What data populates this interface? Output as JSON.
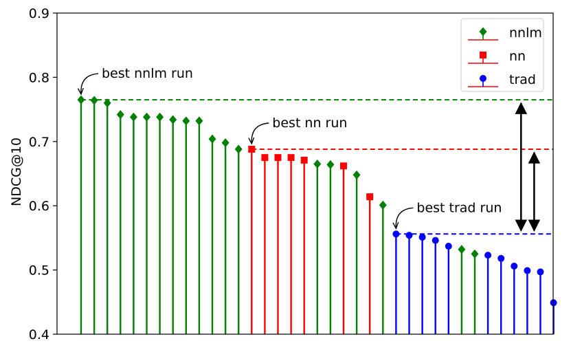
{
  "chart_data": {
    "type": "stem",
    "ylabel": "NDCG@10",
    "ylim": [
      0.4,
      0.9
    ],
    "yticks": [
      0.4,
      0.5,
      0.6,
      0.7,
      0.8,
      0.9
    ],
    "ytick_labels": [
      "0.4",
      "0.5",
      "0.6",
      "0.7",
      "0.8",
      "0.9"
    ],
    "grid": false,
    "legend_position": "upper-right",
    "colors": {
      "nnlm": "#008000",
      "nn": "#ff0000",
      "trad": "#0000ff",
      "baseline_line": "#ff0000",
      "arrows": "#000000"
    },
    "series": [
      {
        "name": "nnlm",
        "marker": "diamond",
        "x": [
          1,
          2,
          3,
          4,
          5,
          6,
          7,
          8,
          9,
          10,
          11,
          12,
          13,
          19,
          20,
          22,
          24,
          30,
          31
        ],
        "values": [
          0.765,
          0.764,
          0.76,
          0.742,
          0.738,
          0.738,
          0.738,
          0.734,
          0.732,
          0.732,
          0.704,
          0.698,
          0.688,
          0.665,
          0.664,
          0.648,
          0.601,
          0.532,
          0.525
        ]
      },
      {
        "name": "nn",
        "marker": "square",
        "x": [
          14,
          15,
          16,
          17,
          18,
          21,
          23
        ],
        "values": [
          0.688,
          0.675,
          0.675,
          0.675,
          0.671,
          0.662,
          0.614
        ]
      },
      {
        "name": "trad",
        "marker": "circle",
        "x": [
          25,
          26,
          27,
          28,
          29,
          32,
          33,
          34,
          35,
          36,
          37
        ],
        "values": [
          0.556,
          0.554,
          0.551,
          0.546,
          0.537,
          0.523,
          0.518,
          0.506,
          0.499,
          0.497,
          0.449
        ]
      }
    ],
    "reference_lines": [
      {
        "series": "nnlm",
        "y": 0.765,
        "from_x": 1
      },
      {
        "series": "nn",
        "y": 0.688,
        "from_x": 14
      },
      {
        "series": "trad",
        "y": 0.556,
        "from_x": 25
      }
    ],
    "annotations": [
      {
        "text": "best nnlm run",
        "x": 1,
        "y": 0.765
      },
      {
        "text": "best nn run",
        "x": 14,
        "y": 0.688
      },
      {
        "text": "best trad run",
        "x": 25,
        "y": 0.556
      }
    ],
    "double_arrows": [
      {
        "x": 34,
        "from": 0.765,
        "to": 0.556
      },
      {
        "x": 35,
        "from": 0.688,
        "to": 0.556
      }
    ]
  }
}
